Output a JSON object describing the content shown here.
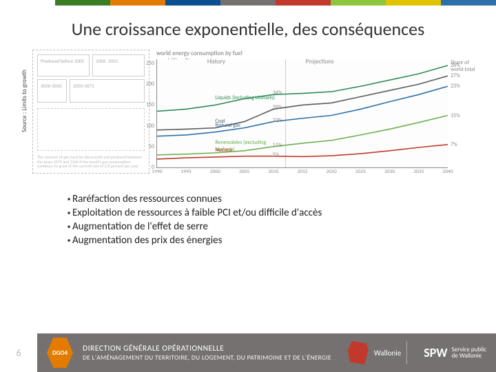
{
  "colorbar": [
    "#ffffff",
    "#3a7d22",
    "#e37b00",
    "#0a4f8f",
    "#767171",
    "#c0392b",
    "#8cc63f",
    "#e2c300",
    "#2d6fa8"
  ],
  "title": "Une croissance exponentielle, des conséquences",
  "source_label": "Source : Limits to growth",
  "left_figure": {
    "boxes_top": [
      "Produced before\n2005",
      "2006-\n2025"
    ],
    "boxes_mid_a": "2026-2050",
    "boxes_mid_b": "2050-2075",
    "note": "This amount of gas must be discovered and produced between the years 2075 and 2100 if the world's gas consumption continues to grow at the current rate of 2.8 percent per year"
  },
  "chart": {
    "title": "world energy consumption by fuel",
    "subtitle": "quadrillion Btu",
    "y_ticks": [
      0,
      50,
      100,
      150,
      200,
      250
    ],
    "ylim": [
      0,
      260
    ],
    "x_ticks": [
      1990,
      1995,
      2000,
      2005,
      2010,
      2015,
      2020,
      2025,
      2030,
      2035,
      2040
    ],
    "xlim": [
      1990,
      2040
    ],
    "history_split_at": 2012,
    "section_left": "History",
    "section_right": "Projections",
    "right_caption": "Share of\nworld total",
    "series": [
      {
        "name": "Liquids (including biofuels)",
        "color": "#2e8b57",
        "vals": [
          135,
          140,
          150,
          165,
          175,
          178,
          182,
          195,
          210,
          225,
          245
        ],
        "end_label": "28%",
        "mid_label": "34%",
        "mid_at": 2012
      },
      {
        "name": "Coal",
        "color": "#5b5b5b",
        "vals": [
          90,
          92,
          95,
          110,
          140,
          150,
          155,
          170,
          185,
          200,
          220
        ],
        "end_label": "27%",
        "mid_label": "28%",
        "mid_at": 2012
      },
      {
        "name": "Natural gas",
        "color": "#2d6fa8",
        "vals": [
          75,
          78,
          85,
          95,
          110,
          118,
          125,
          140,
          158,
          175,
          195
        ],
        "end_label": "23%",
        "mid_label": "22%",
        "mid_at": 2012
      },
      {
        "name": "Renewables (excluding biofuels)",
        "color": "#6ab04c",
        "vals": [
          30,
          32,
          35,
          40,
          50,
          58,
          65,
          78,
          92,
          108,
          125
        ],
        "end_label": "15%",
        "mid_label": "11%",
        "mid_at": 2012
      },
      {
        "name": "Nuclear",
        "color": "#c0392b",
        "vals": [
          20,
          23,
          25,
          27,
          27,
          26,
          28,
          33,
          40,
          48,
          55
        ],
        "end_label": "7%",
        "mid_label": "5%",
        "mid_at": 2012
      }
    ]
  },
  "bullets": [
    "Raréfaction des ressources connues",
    "Exploitation de ressources à faible PCI et/ou difficile d'accès",
    "Augmentation de l'effet de serre",
    "Augmentation des prix des énergies"
  ],
  "footer": {
    "page": "6",
    "hex": "DGO4",
    "line1": "DIRECTION GÉNÉRALE OPÉRATIONNELLE",
    "line2": "DE L'AMÉNAGEMENT DU TERRITOIRE, DU LOGEMENT, DU PATRIMOINE ET DE L'ÉNERGIE",
    "wallonie": "Wallonie",
    "spw_big": "SPW",
    "spw_small": "Service public\nde Wallonie"
  }
}
